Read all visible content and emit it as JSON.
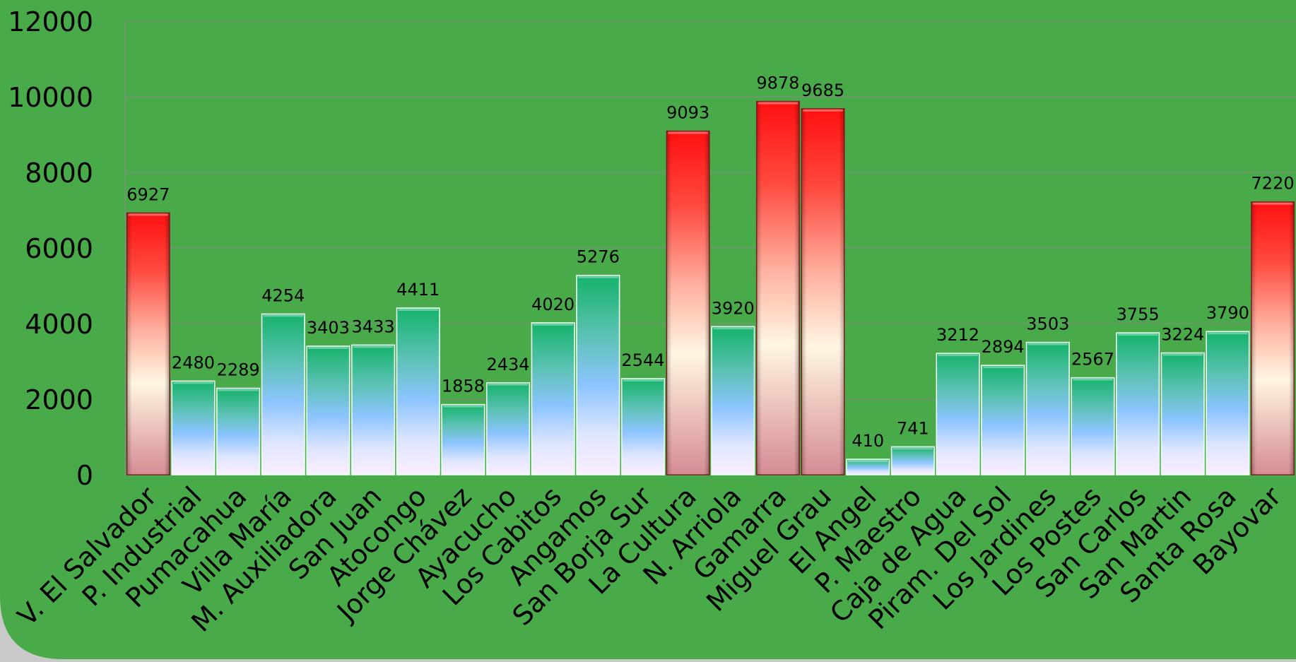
{
  "colors": {
    "background": "#48aa48",
    "highlight_bar": "#ff1a1a",
    "normal_bar": "#1db46e",
    "gridline": "#7f8f7f"
  },
  "chart_data": {
    "type": "bar",
    "ylim": [
      0,
      12000
    ],
    "yticks": [
      "0",
      "2000",
      "4000",
      "6000",
      "8000",
      "10000",
      "12000"
    ],
    "grid": true,
    "legend": "none",
    "categories": [
      "V. El Salvador",
      "P. Industrial",
      "Pumacahua",
      "Villa María",
      "M. Auxiliadora",
      "San Juan",
      "Atocongo",
      "Jorge Chávez",
      "Ayacucho",
      "Los Cabitos",
      "Angamos",
      "San Borja Sur",
      "La Cultura",
      "N. Arriola",
      "Gamarra",
      "Miguel Grau",
      "El Angel",
      "P. Maestro",
      "Caja de Agua",
      "Piram. Del Sol",
      "Los Jardines",
      "Los Postes",
      "San Carlos",
      "San Martin",
      "Santa Rosa",
      "Bayovar"
    ],
    "values": [
      6927,
      2480,
      2289,
      4254,
      3403,
      3433,
      4411,
      1858,
      2434,
      4020,
      5276,
      2544,
      9093,
      3920,
      9878,
      9685,
      410,
      741,
      3212,
      2894,
      3503,
      2567,
      3755,
      3224,
      3790,
      7220
    ],
    "data_labels": [
      "6927",
      "2480",
      "2289",
      "4254",
      "3403",
      "3433",
      "4411",
      "1858",
      "2434",
      "4020",
      "5276",
      "2544",
      "9093",
      "3920",
      "9878",
      "9685",
      "410",
      "741",
      "3212",
      "2894",
      "3503",
      "2567",
      "3755",
      "3224",
      "3790",
      "7220"
    ],
    "highlighted": [
      "V. El Salvador",
      "La Cultura",
      "Gamarra",
      "Miguel Grau",
      "Bayovar"
    ]
  }
}
